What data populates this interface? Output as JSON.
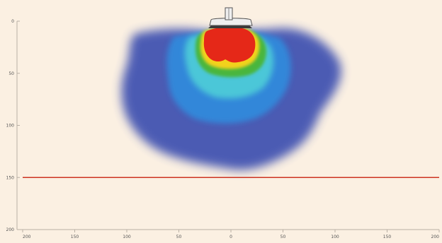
{
  "figure": {
    "background_color": "#fbf0e2",
    "y_axis": {
      "tick_labels": [
        "0",
        "50",
        "100",
        "150",
        "200"
      ],
      "ylim": [
        0,
        200
      ]
    },
    "x_axis": {
      "tick_labels": [
        "200",
        "150",
        "100",
        "50",
        "0",
        "50",
        "100",
        "150",
        "200"
      ],
      "xlim": [
        -200,
        200
      ]
    },
    "reference_line": {
      "depth": 150,
      "color": "#cc3322"
    },
    "plume": {
      "colors": {
        "outer": "#3d4fb0",
        "mid": "#2f8fe0",
        "inner": "#4fd0d8",
        "green": "#4ab63c",
        "yellow": "#f2d21c",
        "core": "#e52818"
      }
    },
    "emitter_icon": "emitter-icon"
  }
}
